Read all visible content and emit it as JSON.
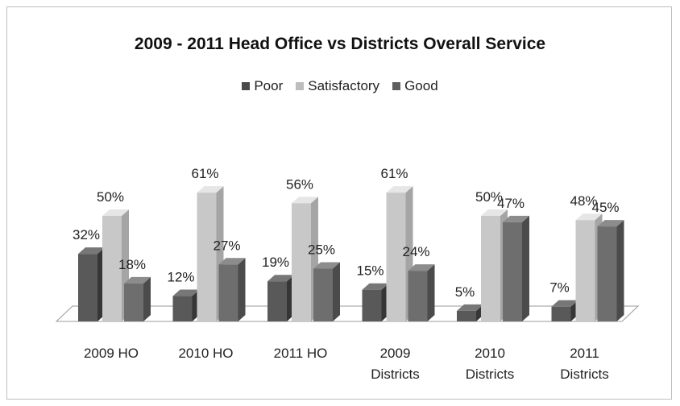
{
  "chart_data": {
    "type": "bar",
    "title": "2009 - 2011 Head Office vs Districts Overall Service",
    "categories": [
      [
        "2009 HO"
      ],
      [
        "2010 HO"
      ],
      [
        "2011 HO"
      ],
      [
        "2009",
        "Districts"
      ],
      [
        "2010",
        "Districts"
      ],
      [
        "2011",
        "Districts"
      ]
    ],
    "series": [
      {
        "name": "Poor",
        "values": [
          32,
          12,
          19,
          15,
          5,
          7
        ],
        "labels": [
          "32%",
          "12%",
          "19%",
          "15%",
          "5%",
          "7%"
        ],
        "color": "#595959"
      },
      {
        "name": "Satisfactory",
        "values": [
          50,
          61,
          56,
          61,
          50,
          48
        ],
        "labels": [
          "50%",
          "61%",
          "56%",
          "61%",
          "50%",
          "48%"
        ],
        "color": "#c8c8c8"
      },
      {
        "name": "Good",
        "values": [
          18,
          27,
          25,
          24,
          47,
          45
        ],
        "labels": [
          "18%",
          "27%",
          "25%",
          "24%",
          "47%",
          "45%"
        ],
        "color": "#6e6e6e"
      }
    ],
    "ylim": [
      0,
      70
    ],
    "legend_position": "top",
    "grid": false,
    "style": "3d-clustered-column"
  }
}
